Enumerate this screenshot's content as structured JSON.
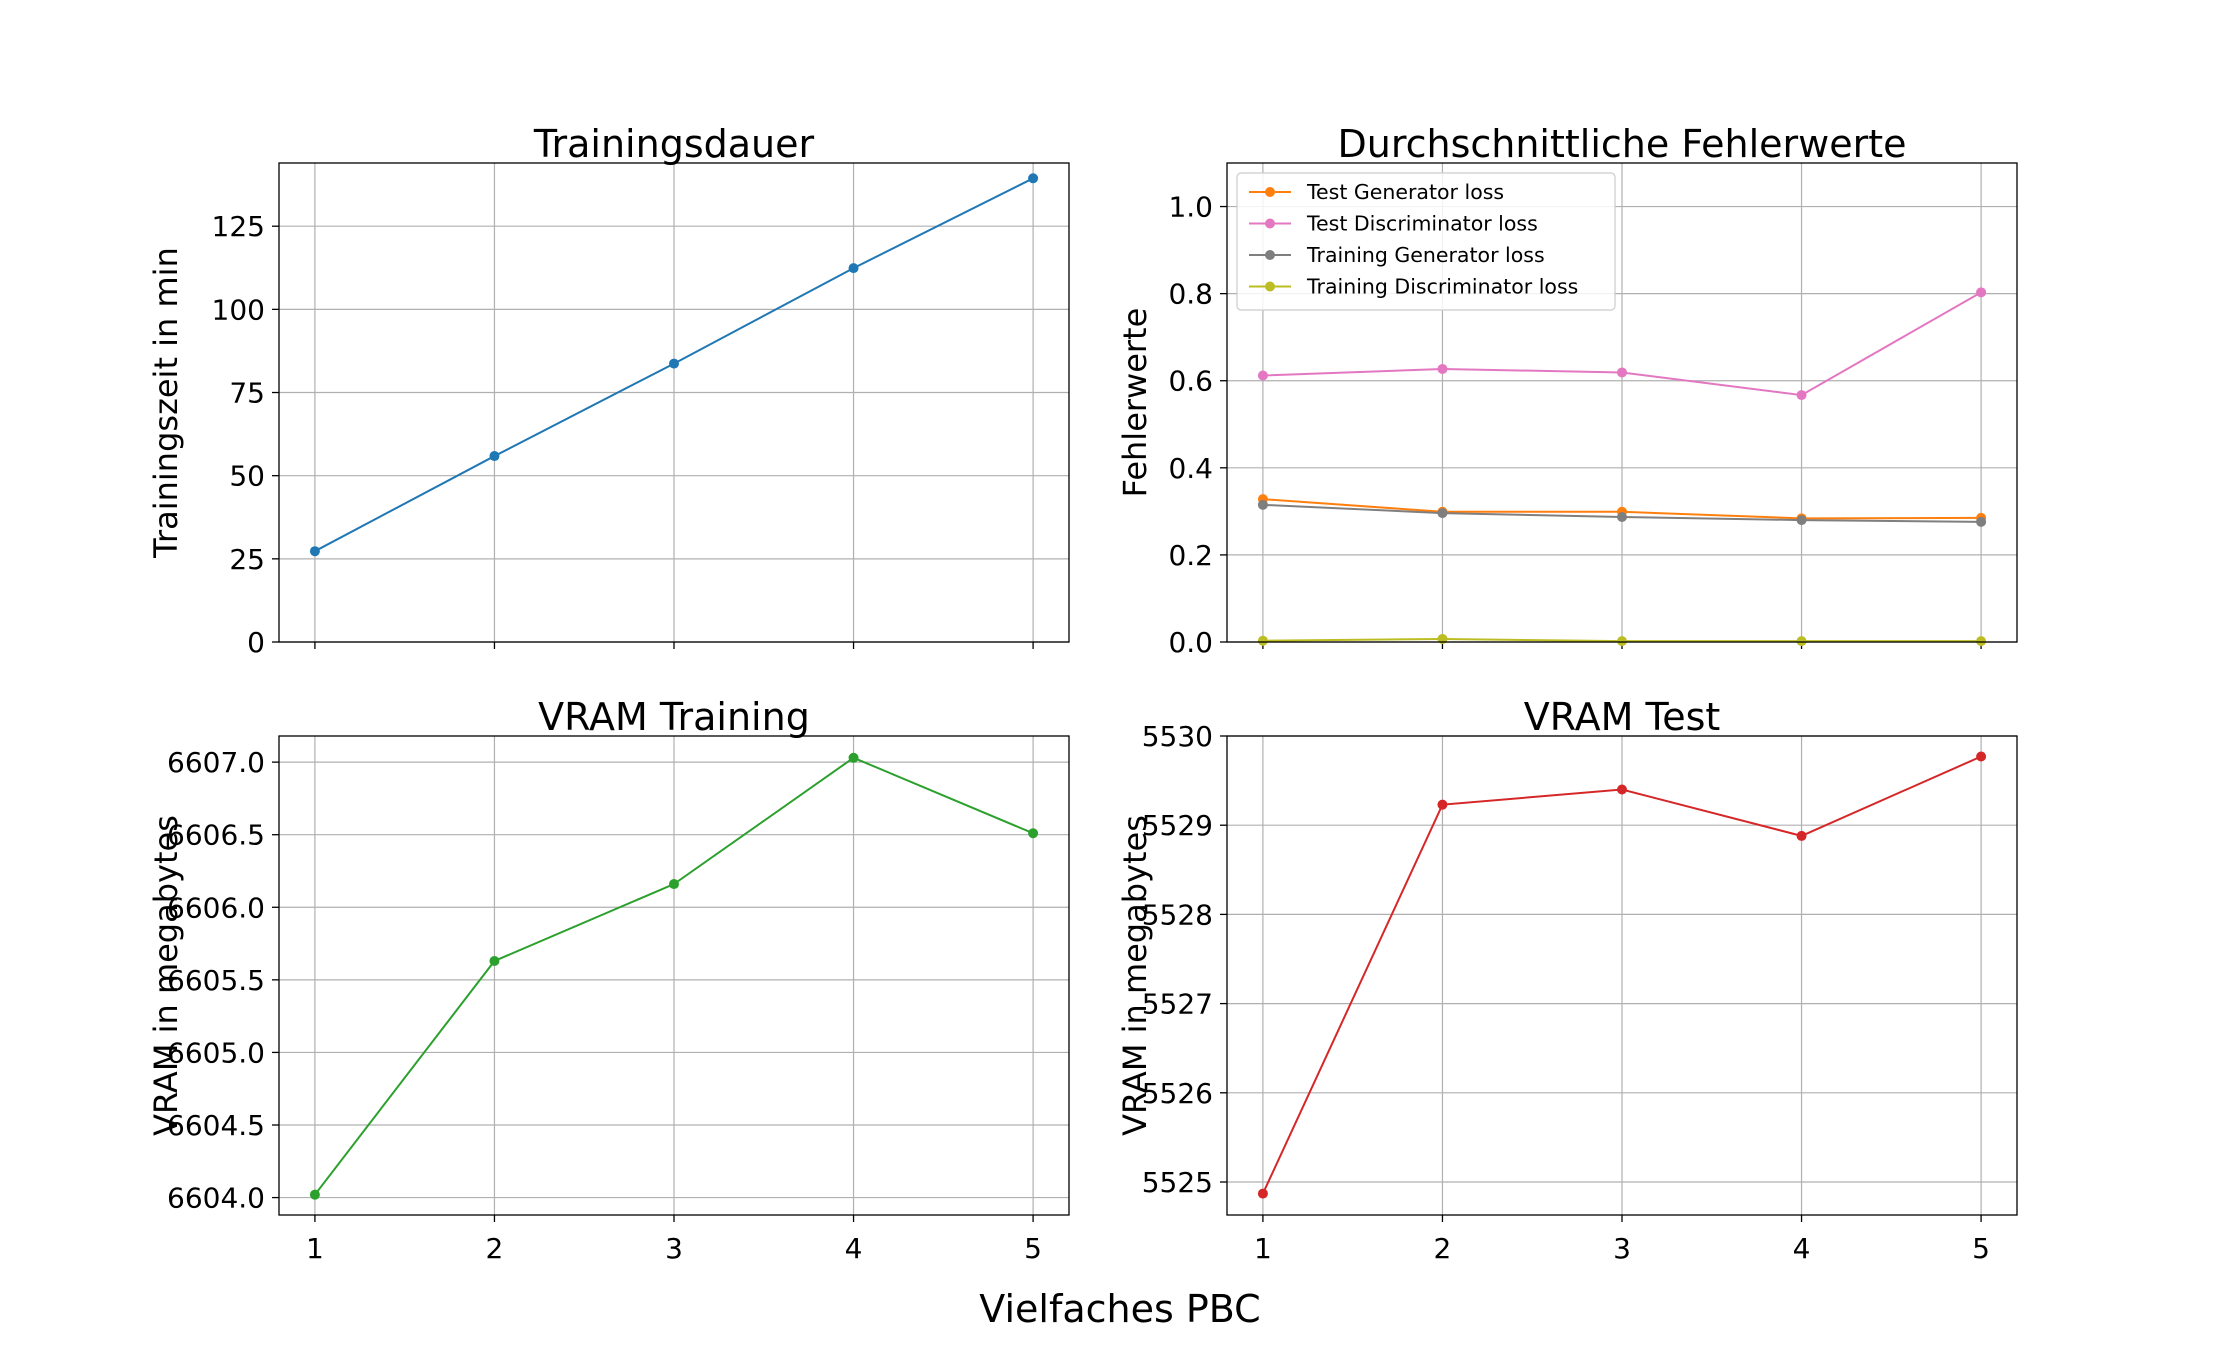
{
  "figure": {
    "xlabel": "Vielfaches PBC"
  },
  "colors": {
    "grid": "#b0b0b0",
    "axes": "#000000",
    "legend_border": "#cccccc"
  },
  "chart_data": [
    {
      "type": "line",
      "title": "Trainingsdauer",
      "ylabel": "Trainingszeit in min",
      "x": [
        1,
        2,
        3,
        4,
        5
      ],
      "xlim": [
        0.8,
        5.2
      ],
      "ylim": [
        0,
        144
      ],
      "yticks": [
        0,
        25,
        50,
        75,
        100,
        125
      ],
      "ytick_labels": [
        "0",
        "25",
        "50",
        "75",
        "100",
        "125"
      ],
      "show_xtick_labels": false,
      "grid": true,
      "series": [
        {
          "values": [
            27.3,
            55.9,
            83.7,
            112.4,
            139.4
          ],
          "color": "#1f77b4"
        }
      ]
    },
    {
      "type": "line",
      "title": "Durchschnittliche Fehlerwerte",
      "ylabel": "Fehlerwerte",
      "x": [
        1,
        2,
        3,
        4,
        5
      ],
      "xlim": [
        0.8,
        5.2
      ],
      "ylim": [
        0,
        1.1
      ],
      "yticks": [
        0.0,
        0.2,
        0.4,
        0.6,
        0.8,
        1.0
      ],
      "ytick_labels": [
        "0.0",
        "0.2",
        "0.4",
        "0.6",
        "0.8",
        "1.0"
      ],
      "show_xtick_labels": false,
      "grid": true,
      "legend": "top-left",
      "series": [
        {
          "name": "Test Generator loss",
          "values": [
            0.328,
            0.299,
            0.299,
            0.284,
            0.285
          ],
          "color": "#ff7f0e"
        },
        {
          "name": "Test Discriminator loss",
          "values": [
            0.612,
            0.627,
            0.619,
            0.567,
            0.803
          ],
          "color": "#e377c2"
        },
        {
          "name": "Training Generator loss",
          "values": [
            0.315,
            0.296,
            0.287,
            0.28,
            0.276
          ],
          "color": "#7f7f7f"
        },
        {
          "name": "Training Discriminator loss",
          "values": [
            0.003,
            0.007,
            0.002,
            0.002,
            0.002
          ],
          "color": "#bcbd22"
        }
      ]
    },
    {
      "type": "line",
      "title": "VRAM Training",
      "ylabel": "VRAM in megabytes",
      "x": [
        1,
        2,
        3,
        4,
        5
      ],
      "xlim": [
        0.8,
        5.2
      ],
      "ylim": [
        6603.88,
        6607.18
      ],
      "yticks": [
        6604.0,
        6604.5,
        6605.0,
        6605.5,
        6606.0,
        6606.5,
        6607.0
      ],
      "ytick_labels": [
        "6604.0",
        "6604.5",
        "6605.0",
        "6605.5",
        "6606.0",
        "6606.5",
        "6607.0"
      ],
      "xtick_labels": [
        "1",
        "2",
        "3",
        "4",
        "5"
      ],
      "show_xtick_labels": true,
      "grid": true,
      "series": [
        {
          "values": [
            6604.02,
            6605.63,
            6606.16,
            6607.03,
            6606.51
          ],
          "color": "#2ca02c"
        }
      ]
    },
    {
      "type": "line",
      "title": "VRAM Test",
      "ylabel": "VRAM in megabytes",
      "x": [
        1,
        2,
        3,
        4,
        5
      ],
      "xlim": [
        0.8,
        5.2
      ],
      "ylim": [
        5524.63,
        5530.0
      ],
      "yticks": [
        5525,
        5526,
        5527,
        5528,
        5529,
        5530
      ],
      "ytick_labels": [
        "5525",
        "5526",
        "5527",
        "5528",
        "5529",
        "5530"
      ],
      "xtick_labels": [
        "1",
        "2",
        "3",
        "4",
        "5"
      ],
      "show_xtick_labels": true,
      "grid": true,
      "series": [
        {
          "values": [
            5524.87,
            5529.23,
            5529.4,
            5528.88,
            5529.77
          ],
          "color": "#d62728"
        }
      ]
    }
  ]
}
